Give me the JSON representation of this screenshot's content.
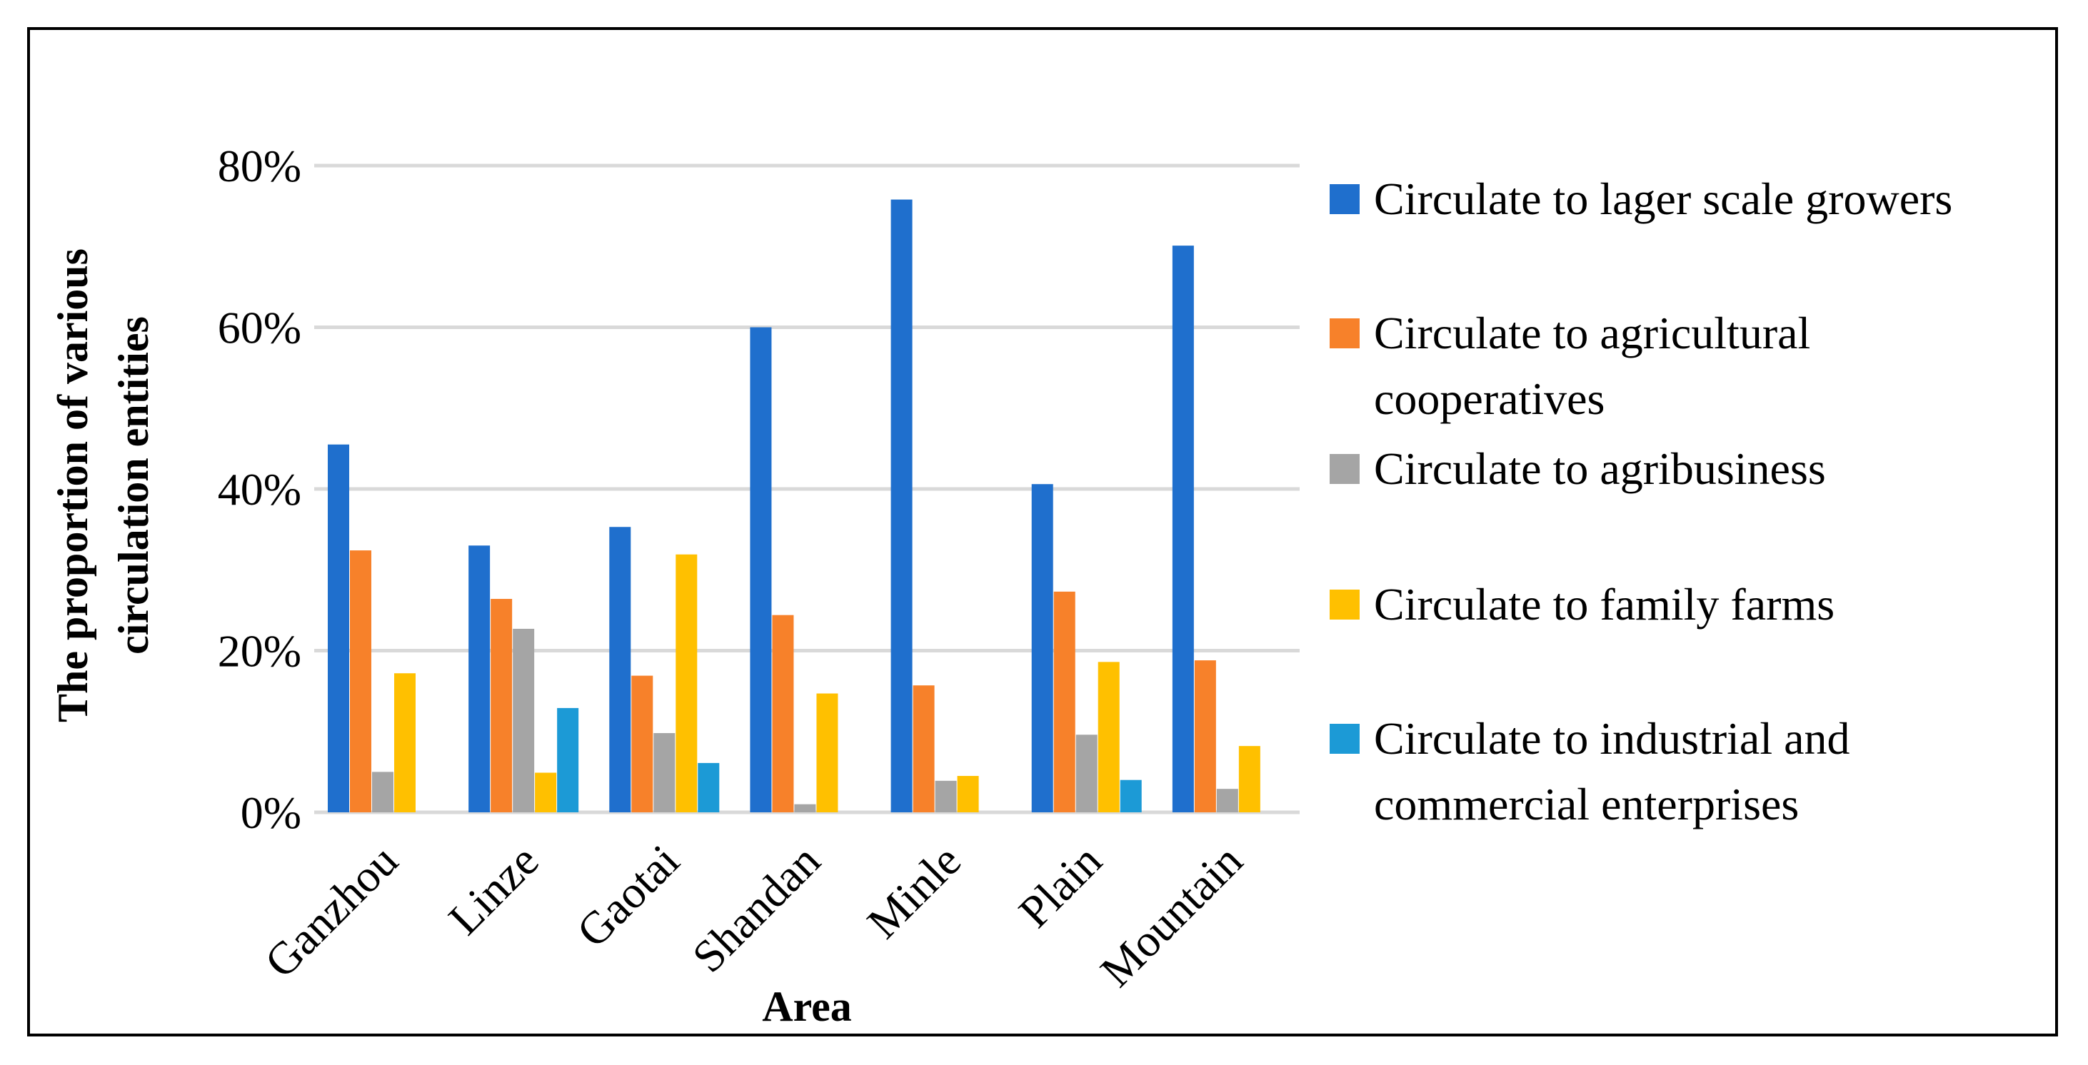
{
  "chart_data": {
    "type": "bar",
    "title": "",
    "xlabel": "Area",
    "ylabel_lines": [
      "The proportion of various",
      "circulation entities"
    ],
    "categories": [
      "Ganzhou",
      "Linze",
      "Gaotai",
      "Shandan",
      "Minle",
      "Plain",
      "Mountain"
    ],
    "ylim": [
      0,
      80
    ],
    "yticks": [
      "0%",
      "20%",
      "40%",
      "60%",
      "80%"
    ],
    "ytick_values": [
      0,
      20,
      40,
      60,
      80
    ],
    "grid": true,
    "legend_position": "right",
    "series": [
      {
        "name": "Circulate to lager scale growers",
        "legend_lines": [
          "Circulate to lager scale growers"
        ],
        "color": "#1f6fcd",
        "values": [
          45.5,
          33.0,
          35.3,
          60.0,
          75.8,
          40.6,
          70.1
        ]
      },
      {
        "name": "Circulate to agricultural cooperatives",
        "legend_lines": [
          "Circulate to agricultural",
          "cooperatives"
        ],
        "color": "#f7812a",
        "values": [
          32.4,
          26.4,
          16.9,
          24.4,
          15.7,
          27.3,
          18.8
        ]
      },
      {
        "name": "Circulate to agribusiness",
        "legend_lines": [
          "Circulate to agribusiness"
        ],
        "color": "#a5a5a5",
        "values": [
          5.0,
          22.7,
          9.8,
          1.0,
          3.9,
          9.6,
          2.9
        ]
      },
      {
        "name": "Circulate to family farms",
        "legend_lines": [
          "Circulate to family farms"
        ],
        "color": "#ffc000",
        "values": [
          17.2,
          4.9,
          31.9,
          14.7,
          4.5,
          18.6,
          8.2
        ]
      },
      {
        "name": "Circulate to industrial and commercial enterprises",
        "legend_lines": [
          "Circulate to industrial and",
          "commercial enterprises"
        ],
        "color": "#1c9ad6",
        "values": [
          0,
          12.9,
          6.1,
          0,
          0,
          4.0,
          0
        ]
      }
    ]
  }
}
